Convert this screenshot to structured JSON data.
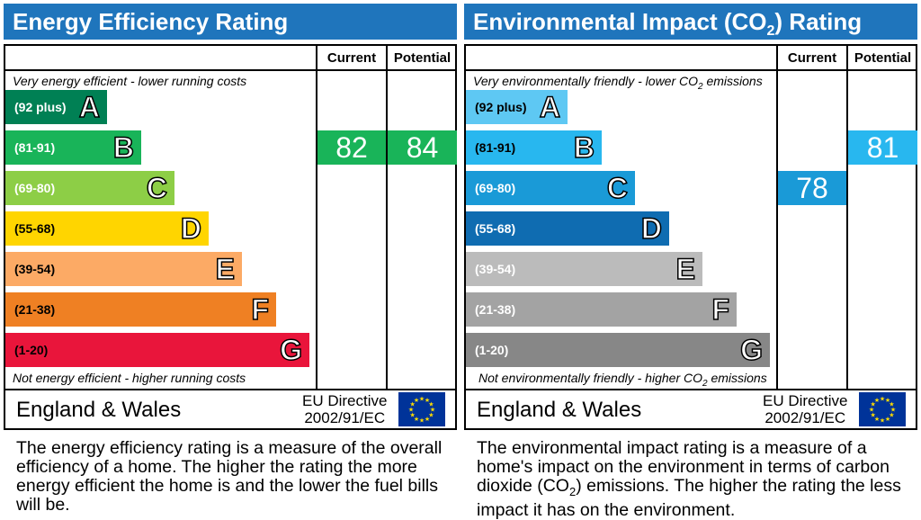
{
  "chart_data": [
    {
      "type": "table",
      "title": "Energy Efficiency Rating",
      "columns": [
        "Current",
        "Potential"
      ],
      "top_note": "Very energy efficient - lower running costs",
      "bottom_note": "Not energy efficient - higher running costs",
      "bands": [
        {
          "range": "(92 plus)",
          "letter": "A",
          "color": "#008054"
        },
        {
          "range": "(81-91)",
          "letter": "B",
          "color": "#19b459"
        },
        {
          "range": "(69-80)",
          "letter": "C",
          "color": "#8dce46"
        },
        {
          "range": "(55-68)",
          "letter": "D",
          "color": "#ffd500"
        },
        {
          "range": "(39-54)",
          "letter": "E",
          "color": "#fcaa65"
        },
        {
          "range": "(21-38)",
          "letter": "F",
          "color": "#ef8023"
        },
        {
          "range": "(1-20)",
          "letter": "G",
          "color": "#e9153b"
        }
      ],
      "current": {
        "value": "82",
        "band": "B",
        "color": "#19b459"
      },
      "potential": {
        "value": "84",
        "band": "B",
        "color": "#19b459"
      },
      "region": "England & Wales",
      "directive_line1": "EU Directive",
      "directive_line2": "2002/91/EC",
      "description": "The energy efficiency rating is a measure of the overall efficiency of a home. The higher the rating the more energy efficient the home is and the lower the fuel bills will be."
    },
    {
      "type": "table",
      "title_pre": "Environmental Impact (CO",
      "title_sub": "2",
      "title_post": ") Rating",
      "columns": [
        "Current",
        "Potential"
      ],
      "top_note_pre": "Very environmentally friendly - lower CO",
      "top_note_sub": "2",
      "top_note_post": " emissions",
      "bottom_note_pre": "Not environmentally friendly - higher CO",
      "bottom_note_sub": "2",
      "bottom_note_post": " emissions",
      "bands": [
        {
          "range": "(92 plus)",
          "letter": "A",
          "color": "#5ec8f3"
        },
        {
          "range": "(81-91)",
          "letter": "B",
          "color": "#28b7ef"
        },
        {
          "range": "(69-80)",
          "letter": "C",
          "color": "#1a9ad7"
        },
        {
          "range": "(55-68)",
          "letter": "D",
          "color": "#0f6cb1"
        },
        {
          "range": "(39-54)",
          "letter": "E",
          "color": "#bbbbbb"
        },
        {
          "range": "(21-38)",
          "letter": "F",
          "color": "#a3a3a3"
        },
        {
          "range": "(1-20)",
          "letter": "G",
          "color": "#878787"
        }
      ],
      "current": {
        "value": "78",
        "band": "C",
        "color": "#1a9ad7"
      },
      "potential": {
        "value": "81",
        "band": "B",
        "color": "#28b7ef"
      },
      "region": "England & Wales",
      "directive_line1": "EU Directive",
      "directive_line2": "2002/91/EC",
      "description_pre": "The environmental impact rating is a measure of a home's impact on the environment in terms of carbon dioxide (CO",
      "description_sub": "2",
      "description_post": ") emissions. The higher the rating the less impact it has on the environment."
    }
  ],
  "colors": {
    "header": "#1f75bc",
    "eu_flag": "#003399",
    "eu_stars": "#ffdd00"
  },
  "icons": {
    "flag": "eu-flag-icon"
  }
}
